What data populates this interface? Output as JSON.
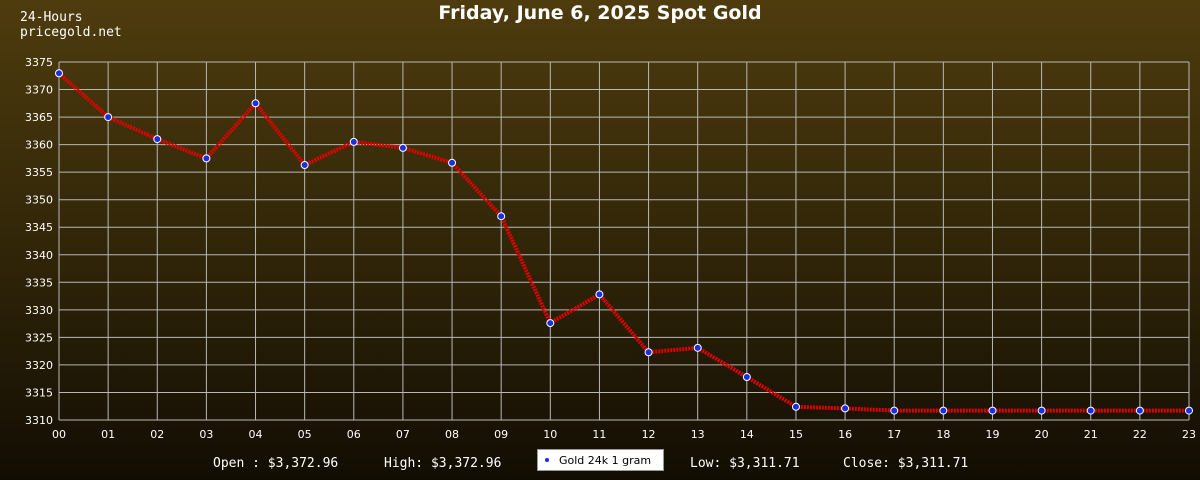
{
  "header": {
    "line1": "24-Hours",
    "line2": "pricegold.net"
  },
  "stats": {
    "open": "Open : $3,372.96",
    "high": "High: $3,372.96",
    "low": "Low: $3,311.71",
    "close": "Close: $3,311.71"
  },
  "colors": {
    "line": "#e00000",
    "marker": "#1a2fe0",
    "grid": "#b8b8b8",
    "text": "#ffffff"
  },
  "chart_data": {
    "type": "line",
    "title": "Friday, June 6, 2025 Spot Gold",
    "xlabel": "",
    "ylabel": "",
    "categories": [
      "00",
      "01",
      "02",
      "03",
      "04",
      "05",
      "06",
      "07",
      "08",
      "09",
      "10",
      "11",
      "12",
      "13",
      "14",
      "15",
      "16",
      "17",
      "18",
      "19",
      "20",
      "21",
      "22",
      "23"
    ],
    "ylim": [
      3310,
      3375
    ],
    "yticks": [
      3310,
      3315,
      3320,
      3325,
      3330,
      3335,
      3340,
      3345,
      3350,
      3355,
      3360,
      3365,
      3370,
      3375
    ],
    "grid": true,
    "legend": "bottom-center",
    "series": [
      {
        "name": "Gold 24k 1 gram",
        "values": [
          3372.96,
          3365.0,
          3361.0,
          3357.5,
          3367.5,
          3356.3,
          3360.5,
          3359.4,
          3356.7,
          3347.0,
          3327.6,
          3332.8,
          3322.3,
          3323.1,
          3317.8,
          3312.4,
          3312.1,
          3311.71,
          3311.71,
          3311.71,
          3311.71,
          3311.71,
          3311.71,
          3311.71
        ]
      }
    ]
  }
}
